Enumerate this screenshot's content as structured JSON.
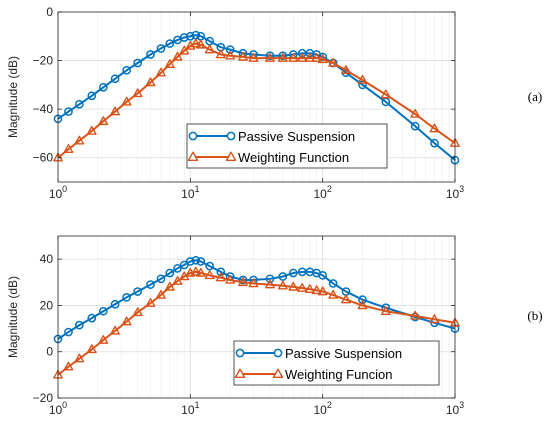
{
  "chart_data": [
    {
      "type": "line",
      "panel_label": "(a)",
      "x_scale": "log",
      "xlim": [
        1,
        1000
      ],
      "ylim": [
        -70,
        0
      ],
      "ylabel": "Magnitude (dB)",
      "yticks": [
        "0",
        "-20",
        "-40",
        "-60"
      ],
      "xticks": [
        {
          "base": "10",
          "exp": "0"
        },
        {
          "base": "10",
          "exp": "1"
        },
        {
          "base": "10",
          "exp": "2"
        },
        {
          "base": "10",
          "exp": "3"
        }
      ],
      "grid": true,
      "legend_position": "lower-center",
      "series": [
        {
          "name": "Passive Suspension",
          "color": "#0072BD",
          "marker": "circle",
          "x": [
            1,
            1.2,
            1.45,
            1.8,
            2.2,
            2.7,
            3.3,
            4,
            5,
            6,
            7,
            8,
            9,
            10,
            11,
            12,
            14,
            17,
            20,
            25,
            30,
            40,
            50,
            60,
            70,
            80,
            90,
            100,
            120,
            150,
            200,
            300,
            500,
            700,
            1000
          ],
          "y": [
            -44,
            -41,
            -38,
            -34.5,
            -31,
            -27.5,
            -24,
            -21,
            -17.5,
            -15,
            -13,
            -11.5,
            -10.5,
            -10,
            -9.5,
            -10,
            -12,
            -14.5,
            -15.5,
            -17,
            -17.5,
            -18,
            -18,
            -17.5,
            -17,
            -17,
            -17.5,
            -18.5,
            -21,
            -25,
            -30,
            -37,
            -47,
            -54,
            -61
          ]
        },
        {
          "name": "Weighting Function",
          "color": "#D95319",
          "marker": "triangle",
          "x": [
            1,
            1.2,
            1.45,
            1.8,
            2.2,
            2.7,
            3.3,
            4,
            5,
            6,
            7,
            8,
            9,
            10,
            11,
            12,
            14,
            17,
            20,
            25,
            30,
            40,
            50,
            60,
            70,
            80,
            90,
            100,
            120,
            150,
            200,
            300,
            500,
            700,
            1000
          ],
          "y": [
            -60,
            -56.5,
            -53,
            -49,
            -45,
            -41,
            -37,
            -33.5,
            -29,
            -25,
            -21.5,
            -18.5,
            -16,
            -14,
            -13,
            -13.5,
            -15.5,
            -17.5,
            -18,
            -18.5,
            -19,
            -19,
            -19,
            -19,
            -19,
            -19,
            -19,
            -19.5,
            -21,
            -24,
            -28,
            -34,
            -42,
            -48,
            -54
          ]
        }
      ]
    },
    {
      "type": "line",
      "panel_label": "(b)",
      "x_scale": "log",
      "xlim": [
        1,
        1000
      ],
      "ylim": [
        -20,
        50
      ],
      "ylabel": "Magnitude (dB)",
      "yticks": [
        "40",
        "20",
        "0",
        "-20"
      ],
      "xticks": [
        {
          "base": "10",
          "exp": "0"
        },
        {
          "base": "10",
          "exp": "1"
        },
        {
          "base": "10",
          "exp": "2"
        },
        {
          "base": "10",
          "exp": "3"
        }
      ],
      "grid": true,
      "legend_position": "lower-center",
      "series": [
        {
          "name": "Passive Suspension",
          "color": "#0072BD",
          "marker": "circle",
          "x": [
            1,
            1.2,
            1.45,
            1.8,
            2.2,
            2.7,
            3.3,
            4,
            5,
            6,
            7,
            8,
            9,
            10,
            11,
            12,
            14,
            17,
            20,
            25,
            30,
            40,
            50,
            60,
            70,
            80,
            90,
            100,
            120,
            150,
            200,
            300,
            500,
            700,
            1000
          ],
          "y": [
            5.5,
            8.5,
            11.5,
            14.5,
            17.5,
            20.5,
            23.5,
            26,
            29,
            31.5,
            34,
            36,
            37.5,
            39,
            39.5,
            39,
            37,
            34.5,
            32.5,
            31,
            31,
            31.5,
            32.5,
            34,
            34.5,
            34.5,
            34,
            33,
            29.5,
            26,
            22.5,
            19,
            15,
            12.5,
            10
          ]
        },
        {
          "name": "Weighting Funcion",
          "color": "#D95319",
          "marker": "triangle",
          "x": [
            1,
            1.2,
            1.45,
            1.8,
            2.2,
            2.7,
            3.3,
            4,
            5,
            6,
            7,
            8,
            9,
            10,
            11,
            12,
            14,
            17,
            20,
            25,
            30,
            40,
            50,
            60,
            70,
            80,
            90,
            100,
            120,
            150,
            200,
            300,
            500,
            700,
            1000
          ],
          "y": [
            -10,
            -6.5,
            -3,
            1,
            5,
            9,
            13,
            17,
            21,
            24.5,
            28,
            30.5,
            32.5,
            34,
            34.5,
            34,
            33,
            32,
            31,
            30,
            29.5,
            29,
            28.5,
            28,
            27.5,
            27,
            26.5,
            26,
            24.5,
            22.5,
            20,
            17.5,
            15.5,
            14,
            12.5
          ]
        }
      ]
    }
  ]
}
